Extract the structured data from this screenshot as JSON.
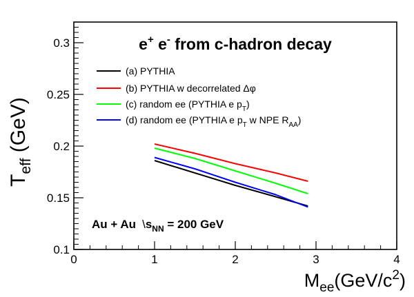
{
  "chart_data": {
    "type": "line",
    "title": {
      "main": "e",
      "sup1": "+",
      "sep": " e",
      "sup2": "-",
      "rest": " from c-hadron decay"
    },
    "xlabel": {
      "main": "M",
      "sub": "ee",
      "rest": "(GeV/c",
      "sup": "2",
      "close": ")"
    },
    "ylabel": {
      "main": "T",
      "sub": "eff",
      "rest": " (GeV)"
    },
    "xlim": [
      0,
      4
    ],
    "ylim": [
      0.1,
      0.32
    ],
    "xticks": [
      0,
      1,
      2,
      3,
      4
    ],
    "xtick_labels": [
      "0",
      "1",
      "2",
      "3",
      "4"
    ],
    "yticks": [
      0.1,
      0.15,
      0.2,
      0.25,
      0.3
    ],
    "ytick_labels": [
      "0.1",
      "0.15",
      "0.2",
      "0.25",
      "0.3"
    ],
    "annotation": {
      "system": "Au + Au",
      "sqrt": "\\",
      "s": "s",
      "sub": "NN",
      "value": " = 200 GeV"
    },
    "series": [
      {
        "name": "(a) PYTHIA",
        "legend": {
          "text": "(a) PYTHIA"
        },
        "color": "#000000",
        "x": [
          1.0,
          1.5,
          2.0,
          2.5,
          2.9
        ],
        "values": [
          0.186,
          0.174,
          0.162,
          0.151,
          0.142
        ]
      },
      {
        "name": "(b) PYTHIA w decorrelated Δφ",
        "legend": {
          "text": "(b) PYTHIA w decorrelated ",
          "symbol": "Δφ"
        },
        "color": "#ff0000",
        "x": [
          1.0,
          1.5,
          2.0,
          2.5,
          2.9
        ],
        "values": [
          0.202,
          0.193,
          0.183,
          0.174,
          0.166
        ]
      },
      {
        "name": "(c) random ee (PYTHIA e pT)",
        "legend": {
          "text": "(c) random ee (PYTHIA e p",
          "sub": "T",
          "after": ")"
        },
        "color": "#00ff00",
        "x": [
          1.0,
          1.5,
          2.0,
          2.5,
          2.9
        ],
        "values": [
          0.198,
          0.188,
          0.176,
          0.164,
          0.154
        ]
      },
      {
        "name": "(d) random ee (PYTHIA e pT w NPE RAA)",
        "legend": {
          "text": "(d) random ee (PYTHIA e p",
          "sub": "T",
          "after": " w NPE R",
          "sub2": "AA",
          "after2": ")"
        },
        "color": "#0000ff",
        "x": [
          1.0,
          1.5,
          2.0,
          2.5,
          2.9
        ],
        "values": [
          0.189,
          0.178,
          0.165,
          0.153,
          0.141
        ]
      }
    ]
  }
}
